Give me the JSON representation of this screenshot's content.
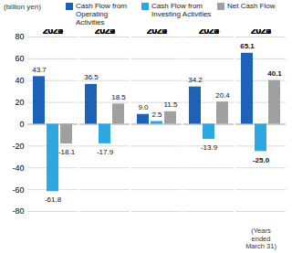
{
  "chart_data": {
    "type": "bar",
    "y_label": "(billion yen)",
    "categories": [
      "2020",
      "2021",
      "2022",
      "2023",
      "2024"
    ],
    "series": [
      {
        "name": "Cash Flow from Operating Activities",
        "color": "#1c63b7",
        "values": [
          43.7,
          36.5,
          9.0,
          34.2,
          65.1
        ],
        "value_labels": [
          "43.7",
          "36.5",
          "9.0",
          "34.2",
          "65.1"
        ]
      },
      {
        "name": "Cash Flow from Investing Activities",
        "color": "#2ea7e0",
        "values": [
          -61.8,
          -17.9,
          2.5,
          -13.9,
          -25.0
        ],
        "value_labels": [
          "-61.8",
          "-17.9",
          "2.5",
          "-13.9",
          "-25.0"
        ]
      },
      {
        "name": "Net Cash Flow",
        "color": "#a0a0a0",
        "values": [
          -18.1,
          18.5,
          11.5,
          20.4,
          40.1
        ],
        "value_labels": [
          "-18.1",
          "18.5",
          "11.5",
          "20.4",
          "40.1"
        ]
      }
    ],
    "annotations": [
      {
        "category": "2024",
        "text": "(Years ended March 31)"
      }
    ],
    "ylim": [
      -80,
      80
    ],
    "yticks": [
      -80,
      -60,
      -40,
      -20,
      0,
      20,
      40,
      60,
      80
    ],
    "grid": true,
    "data_labels": true,
    "legend": "top-right"
  }
}
